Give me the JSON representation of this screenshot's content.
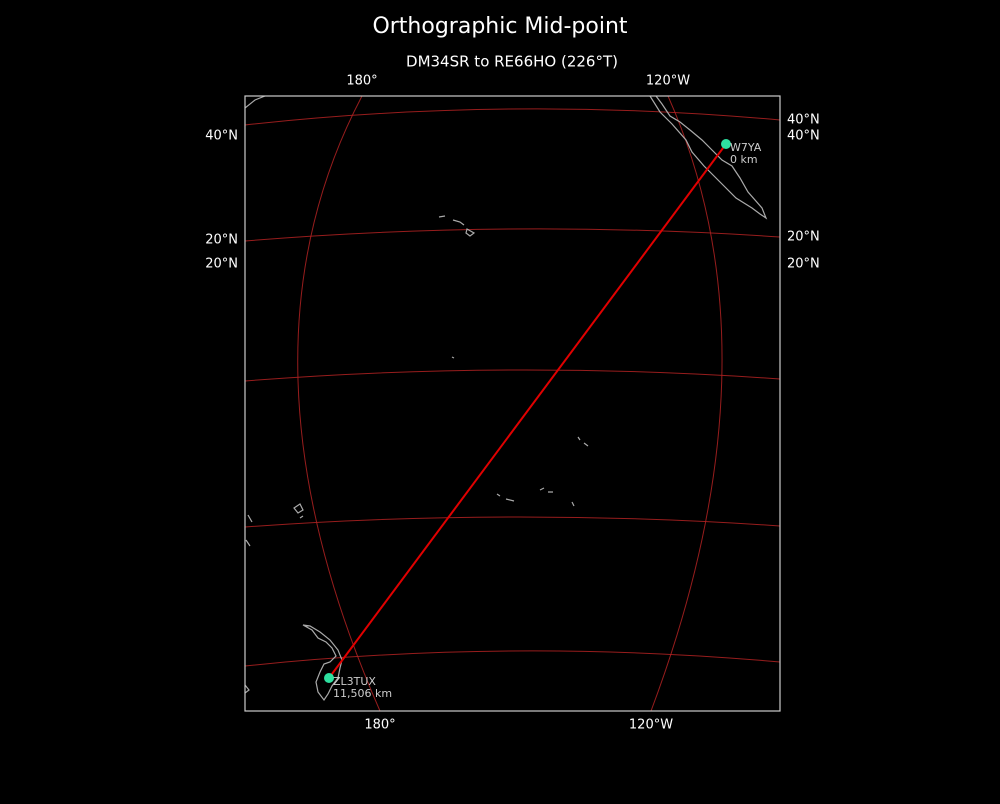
{
  "title": "Orthographic Mid-point",
  "subtitle": "DM34SR to RE66HO (226°T)",
  "grid_labels": {
    "top": [
      "180°",
      "120°W"
    ],
    "bottom": [
      "180°",
      "120°W"
    ],
    "left": [
      "40°N",
      "20°N",
      "20°N"
    ],
    "right": [
      "40°N",
      "40°N",
      "20°N",
      "20°N"
    ]
  },
  "stations": [
    {
      "call": "W7YA",
      "distance": "0 km"
    },
    {
      "call": "ZL3TUX",
      "distance": "11,506 km"
    }
  ]
}
